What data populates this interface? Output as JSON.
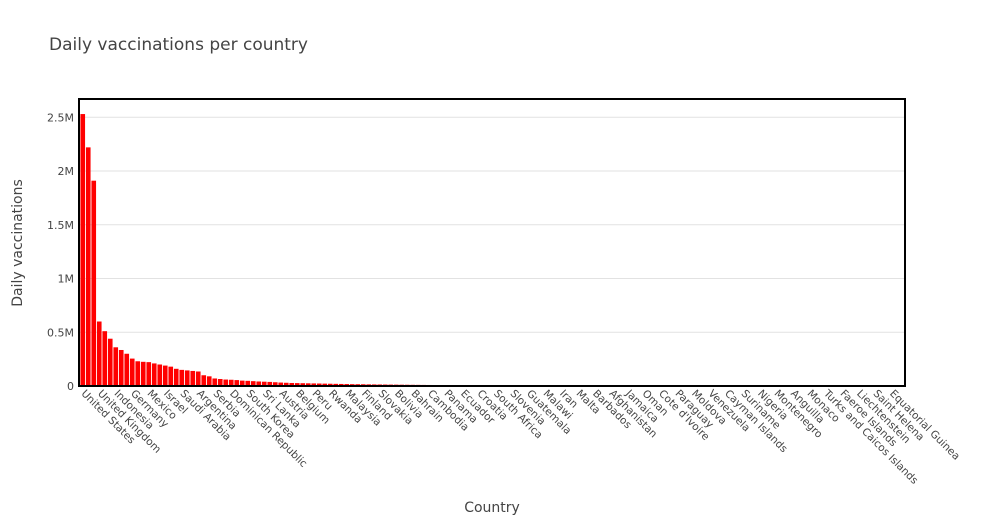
{
  "chart_data": {
    "type": "bar",
    "title": "Daily vaccinations per country",
    "x_label": "Country",
    "y_label": "Daily vaccinations",
    "color": "#ff0000",
    "categories": [
      "United States",
      null,
      null,
      "United Kingdom",
      null,
      null,
      "Indonesia",
      null,
      null,
      "Germany",
      null,
      null,
      "Mexico",
      null,
      null,
      "Israel",
      null,
      null,
      "Saudi Arabia",
      null,
      null,
      "Argentina",
      null,
      null,
      "Serbia",
      null,
      null,
      "Dominican Republic",
      null,
      null,
      "South Korea",
      null,
      null,
      "Sri Lanka",
      null,
      null,
      "Austria",
      null,
      null,
      "Belgium",
      null,
      null,
      "Peru",
      null,
      null,
      "Rwanda",
      null,
      null,
      "Malaysia",
      null,
      null,
      "Finland",
      null,
      null,
      "Slovakia",
      null,
      null,
      "Bolivia",
      null,
      null,
      "Bahrain",
      null,
      null,
      "Cambodia",
      null,
      null,
      "Panama",
      null,
      null,
      "Ecuador",
      null,
      null,
      "Croatia",
      null,
      null,
      "South Africa",
      null,
      null,
      "Slovenia",
      null,
      null,
      "Guatemala",
      null,
      null,
      "Malawi",
      null,
      null,
      "Iran",
      null,
      null,
      "Malta",
      null,
      null,
      "Barbados",
      null,
      null,
      "Afghanistan",
      null,
      null,
      "Jamaica",
      null,
      null,
      "Oman",
      null,
      null,
      "Cote d'Ivoire",
      null,
      null,
      "Paraguay",
      null,
      null,
      "Moldova",
      null,
      null,
      "Venezuela",
      null,
      null,
      "Cayman Islands",
      null,
      null,
      "Suriname",
      null,
      null,
      "Nigeria",
      null,
      null,
      "Montenegro",
      null,
      null,
      "Anguilla",
      null,
      null,
      "Monaco",
      null,
      null,
      "Turks and Caicos Islands",
      null,
      null,
      "Faeroe Islands",
      null,
      null,
      "Liechtenstein",
      null,
      null,
      "Saint Helena",
      null,
      null,
      "Equatorial Guinea",
      null,
      null
    ],
    "values": [
      2530000,
      2220000,
      1910000,
      600000,
      510000,
      440000,
      360000,
      335000,
      300000,
      255000,
      230000,
      225000,
      222000,
      210000,
      200000,
      190000,
      180000,
      160000,
      150000,
      145000,
      140000,
      135000,
      100000,
      90000,
      70000,
      65000,
      60000,
      58000,
      55000,
      50000,
      48000,
      45000,
      42000,
      40000,
      38000,
      35000,
      32000,
      30000,
      28000,
      27000,
      26000,
      25000,
      24000,
      23000,
      22000,
      21000,
      20000,
      19000,
      18000,
      17000,
      16500,
      16000,
      15000,
      14500,
      14000,
      13500,
      13000,
      12500,
      12000,
      11500,
      11000,
      10500,
      10000,
      9500,
      9000,
      8700,
      8400,
      8100,
      7800,
      7500,
      7200,
      6900,
      6600,
      6300,
      6000,
      5700,
      5400,
      5100,
      4900,
      4700,
      4500,
      4300,
      4100,
      3900,
      3700,
      3500,
      3300,
      3100,
      3000,
      2900,
      2800,
      2700,
      2600,
      2500,
      2400,
      2300,
      2200,
      2100,
      2000,
      1900,
      1800,
      1700,
      1600,
      1500,
      1450,
      1400,
      1350,
      1300,
      1250,
      1200,
      1150,
      1100,
      1050,
      1000,
      950,
      900,
      850,
      800,
      760,
      720,
      680,
      640,
      600,
      560,
      520,
      480,
      440,
      400,
      380,
      360,
      340,
      320,
      300,
      280,
      260,
      240,
      220,
      200,
      180,
      160,
      140,
      120,
      100,
      90,
      80,
      70,
      60,
      50,
      40,
      30
    ],
    "ylim": [
      0,
      2670000
    ],
    "yticks": [
      0,
      {
        "value": 500000,
        "label": "0.5M"
      },
      {
        "value": 1000000,
        "label": "1M"
      },
      {
        "value": 1500000,
        "label": "1.5M"
      },
      {
        "value": 2000000,
        "label": "2M"
      },
      {
        "value": 2500000,
        "label": "2.5M"
      }
    ],
    "grid": true
  }
}
